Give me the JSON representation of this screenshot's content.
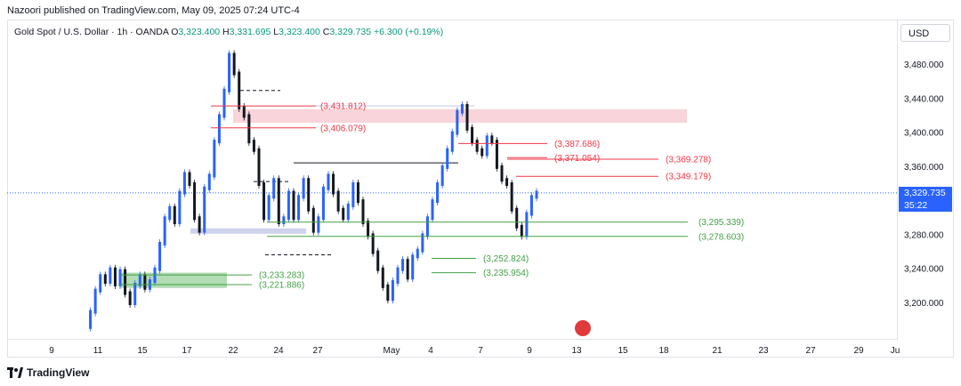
{
  "publisher": "Nazoori published on TradingView.com, May 09, 2025 07:24 UTC-4",
  "symbol": {
    "name": "Gold Spot / U.S. Dollar · 1h · OANDA",
    "o_label": "O",
    "o": "3,323.400",
    "h_label": "H",
    "h": "3,331.695",
    "l_label": "L",
    "l": "3,323.400",
    "c_label": "C",
    "c": "3,329.735",
    "change": "+6.300 (+0.19%)"
  },
  "currency_button": "USD",
  "current_price": {
    "value": "3,329.735",
    "countdown": "35:22"
  },
  "footer": {
    "brand": "TradingView",
    "logo_icon": "tradingview-logo-icon"
  },
  "event_icon": "us-flag-icon",
  "colors": {
    "up": "#089981",
    "down": "#f23645",
    "candle_up": "#2962ff",
    "candle_down": "#131722",
    "resistance": "#f23645",
    "support": "#43a047",
    "zone_red": "#f8cdd3",
    "zone_green": "#a5d6a7",
    "zone_blue": "#c5cae9",
    "current_price": "#2962ff"
  },
  "chart_data": {
    "type": "line",
    "ylim": [
      3180,
      3500
    ],
    "y_ticks": [
      "3,480.000",
      "3,440.000",
      "3,400.000",
      "3,360.000",
      "3,320.000",
      "3,280.000",
      "3,240.000",
      "3,200.000"
    ],
    "y_tick_values": [
      3480,
      3440,
      3400,
      3360,
      3320,
      3280,
      3240,
      3200
    ],
    "x_ticks": [
      "9",
      "11",
      "15",
      "17",
      "22",
      "24",
      "27",
      "May",
      "4",
      "7",
      "9",
      "13",
      "15",
      "18",
      "21",
      "23",
      "27",
      "29",
      "Ju"
    ],
    "series": [
      {
        "values": [
          3172,
          3190,
          3215,
          3232,
          3225,
          3240,
          3222,
          3238,
          3212,
          3200,
          3222,
          3232,
          3218,
          3226,
          3240,
          3270,
          3300,
          3312,
          3295,
          3330,
          3352,
          3340,
          3300,
          3285,
          3335,
          3350,
          3390,
          3420,
          3450,
          3492,
          3470,
          3430,
          3420,
          3390,
          3380,
          3340,
          3300,
          3325,
          3345,
          3295,
          3300,
          3330,
          3300,
          3325,
          3345,
          3310,
          3285,
          3300,
          3335,
          3350,
          3330,
          3310,
          3300,
          3315,
          3340,
          3320,
          3295,
          3280,
          3260,
          3240,
          3220,
          3205,
          3225,
          3240,
          3250,
          3230,
          3255,
          3262,
          3280,
          3300,
          3320,
          3340,
          3360,
          3380,
          3400,
          3425,
          3432,
          3405,
          3390,
          3380,
          3375,
          3395,
          3390,
          3360,
          3345,
          3340,
          3310,
          3290,
          3280,
          3305,
          3325,
          3330
        ]
      }
    ],
    "levels": [
      {
        "label": "(3,431.812)",
        "value": 3431.812,
        "kind": "resistance"
      },
      {
        "label": "(3,406.079)",
        "value": 3406.079,
        "kind": "resistance"
      },
      {
        "label": "(3,387.686)",
        "value": 3387.686,
        "kind": "resistance"
      },
      {
        "label": "(3,371.054)",
        "value": 3371.054,
        "kind": "resistance"
      },
      {
        "label": "(3,369.278)",
        "value": 3369.278,
        "kind": "resistance"
      },
      {
        "label": "(3,349.179)",
        "value": 3349.179,
        "kind": "resistance"
      },
      {
        "label": "(3,295.339)",
        "value": 3295.339,
        "kind": "support"
      },
      {
        "label": "(3,278.603)",
        "value": 3278.603,
        "kind": "support"
      },
      {
        "label": "(3,252.824)",
        "value": 3252.824,
        "kind": "support"
      },
      {
        "label": "(3,235.954)",
        "value": 3235.954,
        "kind": "support"
      },
      {
        "label": "(3,233.283)",
        "value": 3233.283,
        "kind": "support"
      },
      {
        "label": "(3,221.886)",
        "value": 3221.886,
        "kind": "support"
      }
    ],
    "current_price": 3329.735
  }
}
